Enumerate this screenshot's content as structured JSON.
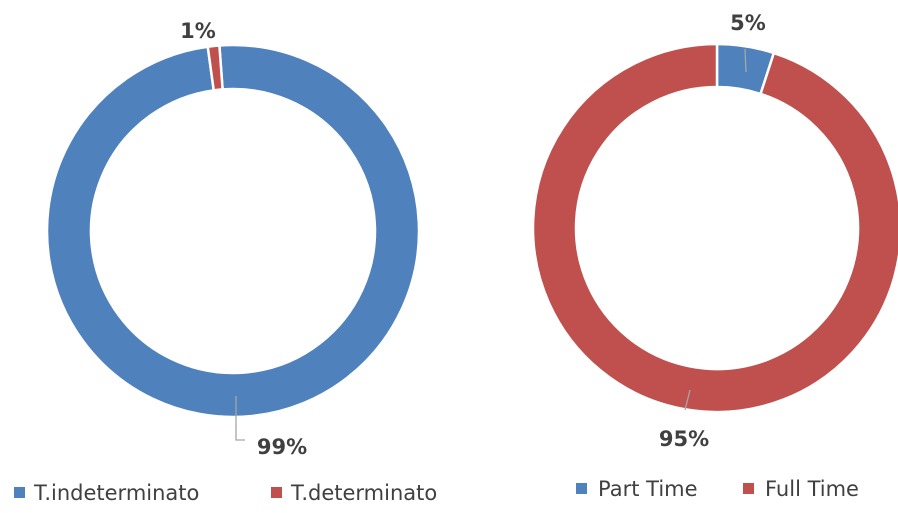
{
  "colors": {
    "blue": "#4f81bd",
    "red": "#c0504d",
    "label": "#404040",
    "leader": "#a6a6a6"
  },
  "chart_data": [
    {
      "type": "pie",
      "variant": "donut",
      "categories": [
        "T.indeterminato",
        "T.determinato"
      ],
      "values": [
        99,
        1
      ],
      "data_labels": [
        "99%",
        "1%"
      ],
      "colors": [
        "#4f81bd",
        "#c0504d"
      ],
      "legend": [
        "T.indeterminato",
        "T.determinato"
      ],
      "legend_position": "bottom"
    },
    {
      "type": "pie",
      "variant": "donut",
      "categories": [
        "Part Time",
        "Full Time"
      ],
      "values": [
        5,
        95
      ],
      "data_labels": [
        "5%",
        "95%"
      ],
      "colors": [
        "#4f81bd",
        "#c0504d"
      ],
      "legend": [
        "Part Time",
        "Full Time"
      ],
      "legend_position": "bottom"
    }
  ]
}
